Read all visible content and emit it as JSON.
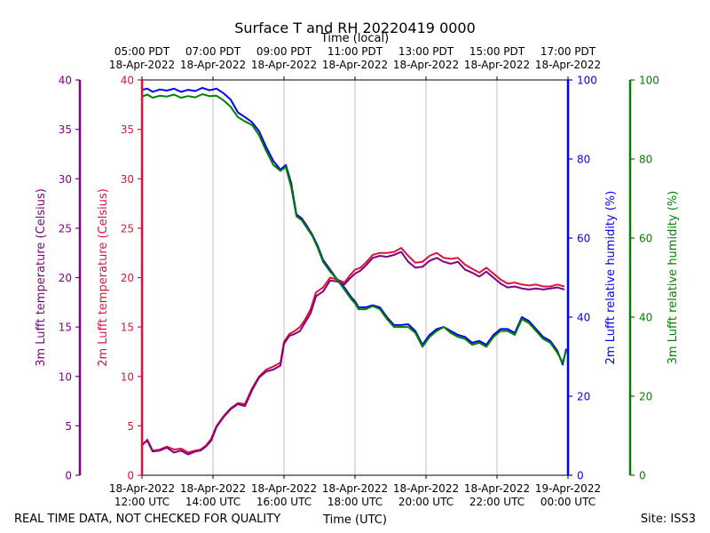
{
  "chart_data": {
    "type": "line",
    "title": "Surface T and RH 20220419 0000",
    "top_axis_title": "Time (local)",
    "xlabel": "Time (UTC)",
    "local_ticks": [
      {
        "time": "05:00 PDT",
        "date": "18-Apr-2022"
      },
      {
        "time": "07:00 PDT",
        "date": "18-Apr-2022"
      },
      {
        "time": "09:00 PDT",
        "date": "18-Apr-2022"
      },
      {
        "time": "11:00 PDT",
        "date": "18-Apr-2022"
      },
      {
        "time": "13:00 PDT",
        "date": "18-Apr-2022"
      },
      {
        "time": "15:00 PDT",
        "date": "18-Apr-2022"
      },
      {
        "time": "17:00 PDT",
        "date": "18-Apr-2022"
      }
    ],
    "utc_ticks": [
      {
        "date": "18-Apr-2022",
        "time": "12:00 UTC"
      },
      {
        "date": "18-Apr-2022",
        "time": "14:00 UTC"
      },
      {
        "date": "18-Apr-2022",
        "time": "16:00 UTC"
      },
      {
        "date": "18-Apr-2022",
        "time": "18:00 UTC"
      },
      {
        "date": "18-Apr-2022",
        "time": "20:00 UTC"
      },
      {
        "date": "18-Apr-2022",
        "time": "22:00 UTC"
      },
      {
        "date": "19-Apr-2022",
        "time": "00:00 UTC"
      }
    ],
    "x_range_utc_hours": [
      12,
      24
    ],
    "left_axes": [
      {
        "label": "3m Lufft temperature (Celsius)",
        "color": "#800080",
        "range": [
          0,
          40
        ],
        "ticks": [
          0,
          5,
          10,
          15,
          20,
          25,
          30,
          35,
          40
        ]
      },
      {
        "label": "2m Lufft temperature (Celsius)",
        "color": "#dc143c",
        "range": [
          0,
          40
        ],
        "ticks": [
          0,
          5,
          10,
          15,
          20,
          25,
          30,
          35,
          40
        ]
      }
    ],
    "right_axes": [
      {
        "label": "2m Lufft relative humidity (%)",
        "color": "#0000ff",
        "range": [
          0,
          100
        ],
        "ticks": [
          0,
          20,
          40,
          60,
          80,
          100
        ]
      },
      {
        "label": "3m Lufft relative humidity (%)",
        "color": "#008000",
        "range": [
          0,
          100
        ],
        "ticks": [
          0,
          20,
          40,
          60,
          80,
          100
        ]
      }
    ],
    "grid": "vertical",
    "series": [
      {
        "color": "#dc143c",
        "axis": "left",
        "width": 2,
        "x": [
          12.0,
          12.15,
          12.3,
          12.5,
          12.7,
          12.9,
          13.1,
          13.3,
          13.5,
          13.65,
          13.8,
          13.95,
          14.1,
          14.3,
          14.5,
          14.7,
          14.9,
          15.1,
          15.3,
          15.5,
          15.7,
          15.9,
          16.0,
          16.15,
          16.3,
          16.45,
          16.6,
          16.75,
          16.9,
          17.1,
          17.3,
          17.5,
          17.7,
          17.85,
          18.0,
          18.15,
          18.3,
          18.5,
          18.7,
          18.9,
          19.1,
          19.3,
          19.5,
          19.7,
          19.9,
          20.1,
          20.3,
          20.5,
          20.7,
          20.9,
          21.1,
          21.3,
          21.5,
          21.7,
          21.9,
          22.1,
          22.3,
          22.5,
          22.7,
          22.9,
          23.1,
          23.3,
          23.5,
          23.7,
          23.9
        ],
        "y": [
          3.0,
          3.6,
          2.5,
          2.6,
          2.9,
          2.6,
          2.7,
          2.3,
          2.5,
          2.6,
          3.0,
          3.7,
          5.0,
          6.0,
          6.8,
          7.3,
          7.2,
          8.8,
          10.0,
          10.7,
          11.0,
          11.4,
          13.5,
          14.3,
          14.6,
          15.0,
          15.8,
          16.8,
          18.5,
          19.0,
          20.0,
          19.8,
          19.5,
          20.2,
          20.8,
          21.0,
          21.5,
          22.3,
          22.5,
          22.5,
          22.6,
          23.0,
          22.2,
          21.5,
          21.6,
          22.2,
          22.5,
          22.0,
          21.9,
          22.0,
          21.3,
          20.9,
          20.5,
          21.0,
          20.4,
          19.8,
          19.4,
          19.5,
          19.3,
          19.2,
          19.3,
          19.1,
          19.1,
          19.3,
          19.1
        ]
      },
      {
        "color": "#800080",
        "axis": "left",
        "width": 2,
        "x": [
          12.0,
          12.15,
          12.3,
          12.5,
          12.7,
          12.9,
          13.1,
          13.3,
          13.5,
          13.65,
          13.8,
          13.95,
          14.1,
          14.3,
          14.5,
          14.7,
          14.9,
          15.1,
          15.3,
          15.5,
          15.7,
          15.9,
          16.0,
          16.15,
          16.3,
          16.45,
          16.6,
          16.75,
          16.9,
          17.1,
          17.3,
          17.5,
          17.7,
          17.85,
          18.0,
          18.15,
          18.3,
          18.5,
          18.7,
          18.9,
          19.1,
          19.3,
          19.5,
          19.7,
          19.9,
          20.1,
          20.3,
          20.5,
          20.7,
          20.9,
          21.1,
          21.3,
          21.5,
          21.7,
          21.9,
          22.1,
          22.3,
          22.5,
          22.7,
          22.9,
          23.1,
          23.3,
          23.5,
          23.7,
          23.9
        ],
        "y": [
          3.1,
          3.5,
          2.4,
          2.5,
          2.8,
          2.3,
          2.5,
          2.1,
          2.4,
          2.5,
          2.9,
          3.5,
          4.9,
          5.9,
          6.7,
          7.2,
          7.0,
          8.6,
          9.9,
          10.5,
          10.7,
          11.1,
          13.3,
          14.1,
          14.3,
          14.6,
          15.5,
          16.4,
          18.1,
          18.6,
          19.7,
          19.6,
          19.3,
          19.9,
          20.4,
          20.7,
          21.2,
          22.0,
          22.2,
          22.1,
          22.3,
          22.6,
          21.6,
          21.0,
          21.1,
          21.7,
          22.0,
          21.6,
          21.4,
          21.6,
          20.8,
          20.5,
          20.1,
          20.6,
          20.0,
          19.4,
          19.0,
          19.1,
          18.9,
          18.8,
          18.9,
          18.8,
          18.9,
          19.0,
          18.8
        ]
      },
      {
        "color": "#0000ff",
        "axis": "right",
        "width": 2,
        "x": [
          12.0,
          12.15,
          12.3,
          12.5,
          12.7,
          12.9,
          13.1,
          13.3,
          13.5,
          13.7,
          13.9,
          14.1,
          14.3,
          14.5,
          14.7,
          14.9,
          15.1,
          15.3,
          15.5,
          15.7,
          15.9,
          16.05,
          16.2,
          16.35,
          16.5,
          16.65,
          16.8,
          16.95,
          17.1,
          17.3,
          17.5,
          17.7,
          17.9,
          18.0,
          18.1,
          18.3,
          18.5,
          18.7,
          18.9,
          19.1,
          19.3,
          19.5,
          19.7,
          19.9,
          20.1,
          20.3,
          20.5,
          20.7,
          20.9,
          21.1,
          21.3,
          21.5,
          21.7,
          21.9,
          22.1,
          22.3,
          22.5,
          22.7,
          22.9,
          23.1,
          23.3,
          23.5,
          23.7,
          23.85,
          23.95
        ],
        "y": [
          97.5,
          97.8,
          97.0,
          97.6,
          97.3,
          97.8,
          97.0,
          97.5,
          97.2,
          98.0,
          97.4,
          97.8,
          96.6,
          95.0,
          91.8,
          90.6,
          89.3,
          87.0,
          83.0,
          79.5,
          77.3,
          78.5,
          74.0,
          66.0,
          65.0,
          63.0,
          60.8,
          58.0,
          54.5,
          52.0,
          49.5,
          47.5,
          45.0,
          44.0,
          42.5,
          42.5,
          43.0,
          42.5,
          40.0,
          38.0,
          38.0,
          38.2,
          36.5,
          33.0,
          35.5,
          37.0,
          37.5,
          36.5,
          35.5,
          35.0,
          33.5,
          34.0,
          33.0,
          35.5,
          37.0,
          37.0,
          36.0,
          40.0,
          39.0,
          37.0,
          35.0,
          34.0,
          31.5,
          28.0,
          32.0
        ]
      },
      {
        "color": "#008000",
        "axis": "right",
        "width": 2,
        "x": [
          12.0,
          12.15,
          12.3,
          12.5,
          12.7,
          12.9,
          13.1,
          13.3,
          13.5,
          13.7,
          13.9,
          14.1,
          14.3,
          14.5,
          14.7,
          14.9,
          15.1,
          15.3,
          15.5,
          15.7,
          15.9,
          16.05,
          16.2,
          16.35,
          16.5,
          16.65,
          16.8,
          16.95,
          17.1,
          17.3,
          17.5,
          17.7,
          17.9,
          18.0,
          18.1,
          18.3,
          18.5,
          18.7,
          18.9,
          19.1,
          19.3,
          19.5,
          19.7,
          19.9,
          20.1,
          20.3,
          20.5,
          20.7,
          20.9,
          21.1,
          21.3,
          21.5,
          21.7,
          21.9,
          22.1,
          22.3,
          22.5,
          22.7,
          22.9,
          23.1,
          23.3,
          23.5,
          23.7,
          23.85,
          23.95
        ],
        "y": [
          95.8,
          96.3,
          95.5,
          96.0,
          95.8,
          96.3,
          95.5,
          95.9,
          95.6,
          96.4,
          95.9,
          96.0,
          94.8,
          93.2,
          90.6,
          89.5,
          88.6,
          86.0,
          82.0,
          78.5,
          77.0,
          78.0,
          73.0,
          65.5,
          64.5,
          62.5,
          60.5,
          57.5,
          54.0,
          51.5,
          49.5,
          47.0,
          44.5,
          43.5,
          42.0,
          42.0,
          42.8,
          42.0,
          39.5,
          37.5,
          37.5,
          37.5,
          36.0,
          32.5,
          35.0,
          36.5,
          37.5,
          36.0,
          35.0,
          34.5,
          33.0,
          33.5,
          32.5,
          35.0,
          36.5,
          36.5,
          35.5,
          39.5,
          38.5,
          36.5,
          34.5,
          33.5,
          31.0,
          28.5,
          31.5
        ]
      }
    ]
  },
  "footer": {
    "left_note": "REAL TIME DATA, NOT CHECKED FOR QUALITY",
    "site": "Site: ISS3"
  }
}
